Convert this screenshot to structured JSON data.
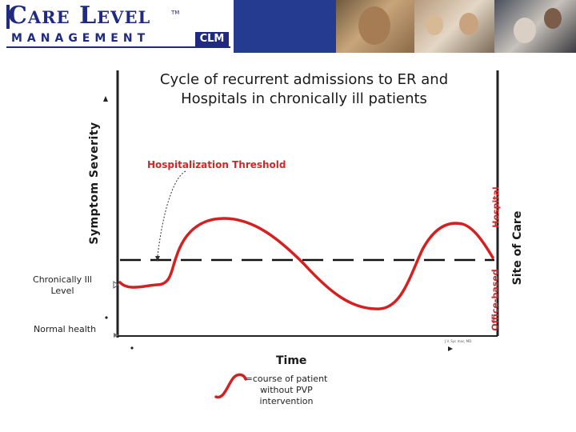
{
  "header": {
    "logo_title": "Care Level",
    "logo_tm": "TM",
    "logo_subtitle": "MANAGEMENT",
    "logo_badge": "CLM",
    "banner_color": "#243b8f"
  },
  "diagram": {
    "title": "Cycle of recurrent admissions to ER and Hospitals in chronically ill patients",
    "threshold_label": "Hospitalization Threshold",
    "y_axis_label": "Symptom Severity",
    "x_axis_label": "Time",
    "right_axis_label": "Site of Care",
    "right_top_label": "Hospital",
    "right_bottom_label": "Office-based",
    "levels": {
      "chronic_label": "Chronically Ill Level",
      "normal_label": "Normal health"
    },
    "legend_text": "=course of patient without PVP intervention",
    "credit_text": "J.V. Syc mac, MD",
    "curve_color": "#d42020",
    "threshold_color": "#111111"
  }
}
